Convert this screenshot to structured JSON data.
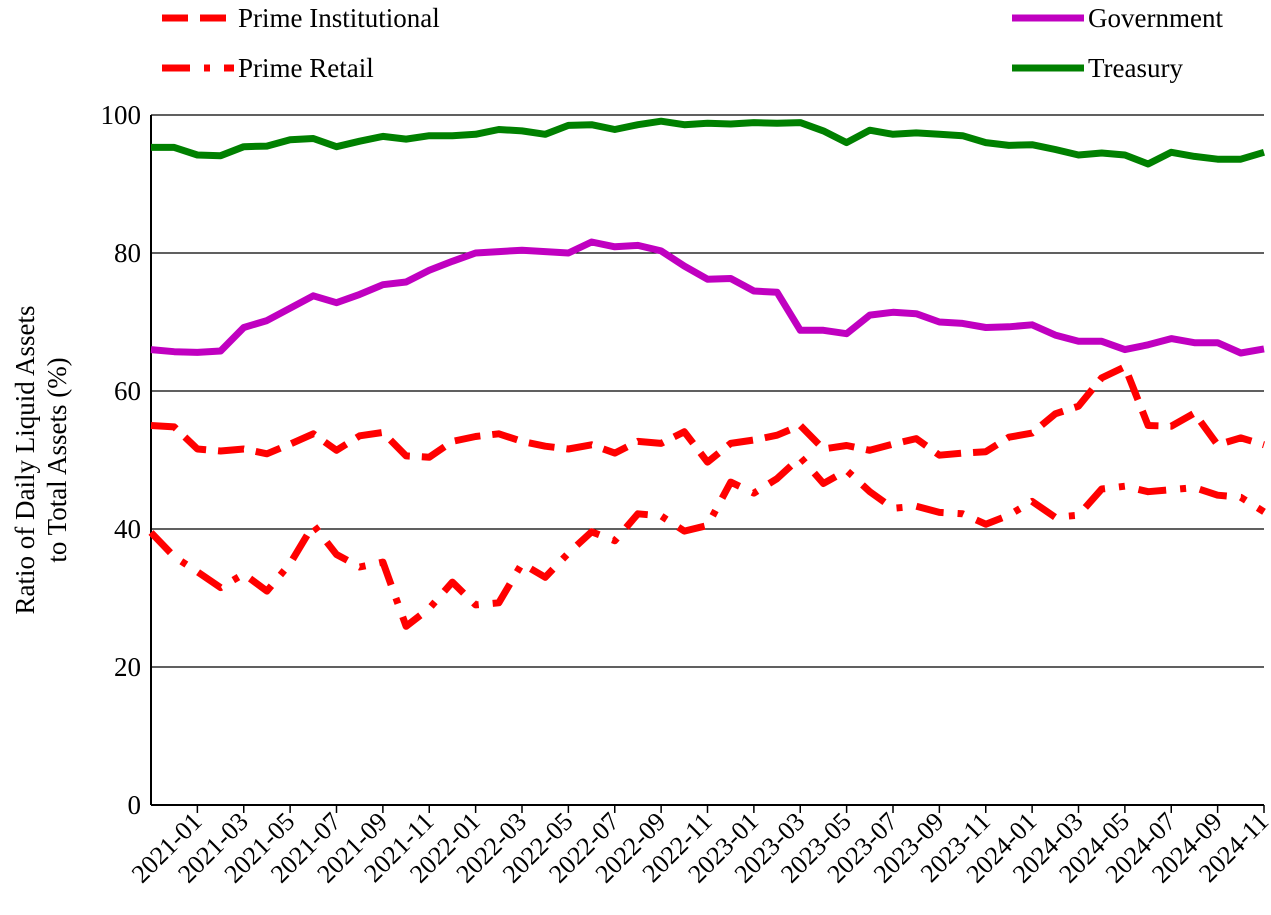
{
  "chart_data": {
    "type": "line",
    "ylabel": [
      "Ratio of Daily Liquid Assets",
      "to Total Assets (%)"
    ],
    "categories": [
      null,
      null,
      "2021-01",
      null,
      "2021-03",
      null,
      "2021-05",
      null,
      "2021-07",
      null,
      "2021-09",
      null,
      "2021-11",
      null,
      "2022-01",
      null,
      "2022-03",
      null,
      "2022-05",
      null,
      "2022-07",
      null,
      "2022-09",
      null,
      "2022-11",
      null,
      "2023-01",
      null,
      "2023-03",
      null,
      "2023-05",
      null,
      "2023-07",
      null,
      "2023-09",
      null,
      "2023-11",
      null,
      "2024-01",
      null,
      "2024-03",
      null,
      "2024-05",
      null,
      "2024-07",
      null,
      "2024-09",
      null,
      "2024-11"
    ],
    "series": [
      {
        "name": "Prime Institutional",
        "color": "#ff0000",
        "style": "dashed",
        "values": [
          55.0,
          54.8,
          51.6,
          51.3,
          51.6,
          50.9,
          52.3,
          53.8,
          51.4,
          53.5,
          54.0,
          50.6,
          50.4,
          52.7,
          53.4,
          53.8,
          52.7,
          52.0,
          51.6,
          52.2,
          51.0,
          52.7,
          52.4,
          54.1,
          49.7,
          52.4,
          52.9,
          53.6,
          55.0,
          51.6,
          52.1,
          51.4,
          52.3,
          53.1,
          50.7,
          51.0,
          51.2,
          53.3,
          53.9,
          56.7,
          57.8,
          61.9,
          63.5,
          55.0,
          54.9,
          56.8,
          52.2,
          53.2,
          52.2
        ]
      },
      {
        "name": "Prime Retail",
        "color": "#ff0000",
        "style": "dashdot",
        "values": [
          39.5,
          36.0,
          33.8,
          31.5,
          33.5,
          31.0,
          35.0,
          40.6,
          36.3,
          34.5,
          35.2,
          25.9,
          28.5,
          32.3,
          29.0,
          29.3,
          35.0,
          33.0,
          36.5,
          39.6,
          38.3,
          42.2,
          41.9,
          39.7,
          40.5,
          46.8,
          45.2,
          47.3,
          50.4,
          46.6,
          48.5,
          45.4,
          43.0,
          43.3,
          42.4,
          42.2,
          40.7,
          42.0,
          44.0,
          41.7,
          42.0,
          45.8,
          46.2,
          45.4,
          45.7,
          46.0,
          44.9,
          44.6,
          42.5
        ]
      },
      {
        "name": "Government",
        "color": "#c000c0",
        "style": "solid",
        "values": [
          66.0,
          65.7,
          65.6,
          65.8,
          69.2,
          70.2,
          72.0,
          73.8,
          72.8,
          74.0,
          75.4,
          75.8,
          77.5,
          78.8,
          80.0,
          80.2,
          80.4,
          80.2,
          80.0,
          81.6,
          80.9,
          81.1,
          80.3,
          78.1,
          76.2,
          76.3,
          74.5,
          74.3,
          68.8,
          68.8,
          68.3,
          71.0,
          71.4,
          71.2,
          70.0,
          69.8,
          69.2,
          69.3,
          69.6,
          68.1,
          67.2,
          67.2,
          66.0,
          66.7,
          67.6,
          67.0,
          67.0,
          65.5,
          66.1
        ]
      },
      {
        "name": "Treasury",
        "color": "#008000",
        "style": "solid",
        "values": [
          95.3,
          95.3,
          94.2,
          94.1,
          95.4,
          95.5,
          96.4,
          96.6,
          95.4,
          96.2,
          96.9,
          96.5,
          97.0,
          97.0,
          97.2,
          97.9,
          97.7,
          97.2,
          98.5,
          98.6,
          97.9,
          98.6,
          99.1,
          98.6,
          98.8,
          98.7,
          98.9,
          98.8,
          98.9,
          97.7,
          96.0,
          97.8,
          97.2,
          97.4,
          97.2,
          97.0,
          96.0,
          95.6,
          95.7,
          95.0,
          94.2,
          94.5,
          94.2,
          92.9,
          94.6,
          94.0,
          93.6,
          93.6,
          94.6
        ]
      }
    ],
    "ylim": [
      0,
      100
    ],
    "yticks": [
      0,
      20,
      40,
      60,
      80,
      100
    ],
    "grid": true
  }
}
